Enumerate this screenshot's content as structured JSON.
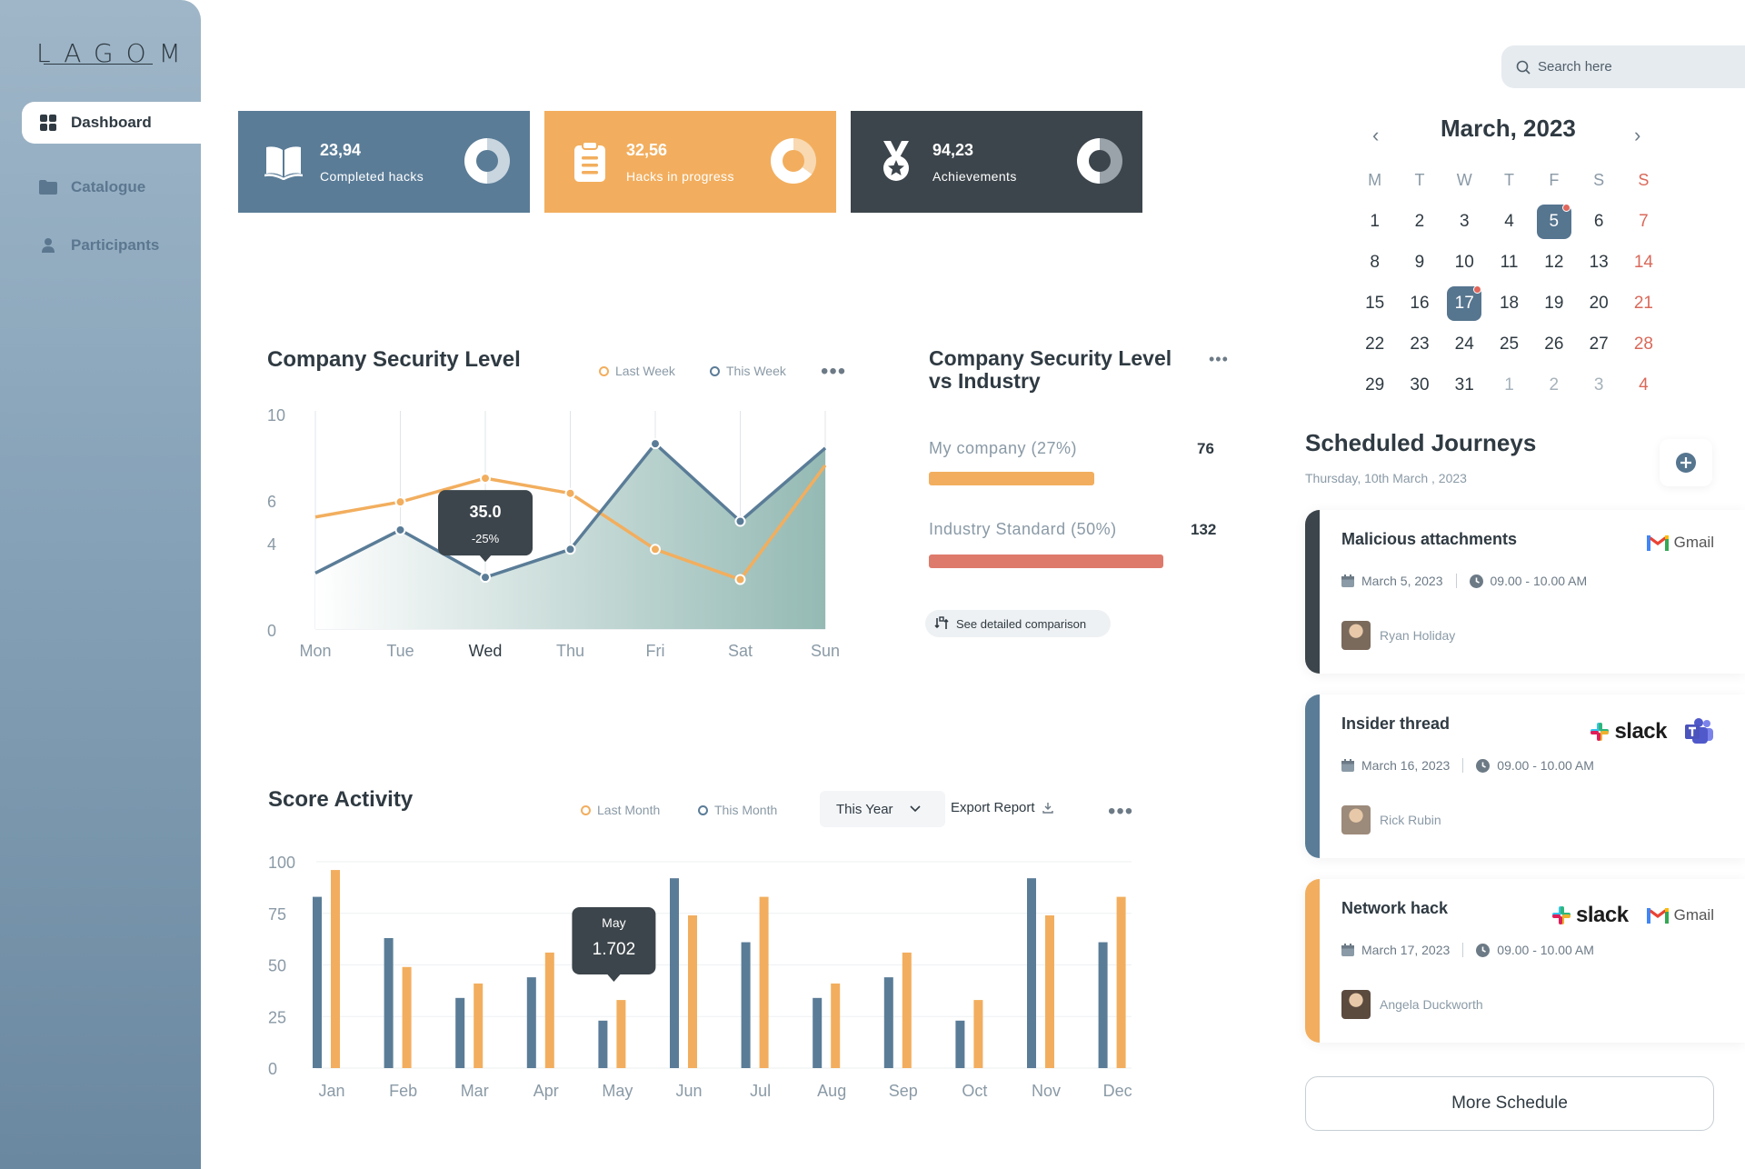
{
  "sidebar": {
    "logo": "LAGOM",
    "items": [
      {
        "label": "Dashboard"
      },
      {
        "label": "Catalogue"
      },
      {
        "label": "Participants"
      }
    ]
  },
  "cards": [
    {
      "value": "23,94",
      "label": "Completed hacks",
      "color": "#5a7c97",
      "icon": "book-icon"
    },
    {
      "value": "32,56",
      "label": "Hacks in progress",
      "color": "#f2ae5e",
      "icon": "clipboard-icon"
    },
    {
      "value": "94,23",
      "label": "Achievements",
      "color": "#3c454b",
      "icon": "medal-icon"
    }
  ],
  "security": {
    "title": "Company Security Level",
    "legend": [
      "Last Week",
      "This Week"
    ],
    "tooltip": {
      "value": "35.0",
      "delta": "-25%"
    }
  },
  "comparison": {
    "title_line1": "Company Security Level",
    "title_line2": "vs Industry",
    "rows": [
      {
        "label": "My company (27%)",
        "value": "76",
        "color": "#f2ae5e"
      },
      {
        "label": "Industry Standard (50%)",
        "value": "132",
        "color": "#de7a6b"
      }
    ],
    "button": "See detailed comparison"
  },
  "score": {
    "title": "Score Activity",
    "legend": [
      "Last Month",
      "This Month"
    ],
    "period": "This Year",
    "export": "Export Report",
    "tooltip": {
      "month": "May",
      "value": "1.702"
    }
  },
  "search": {
    "placeholder": "Search here"
  },
  "calendar": {
    "title": "March, 2023",
    "weekdays": [
      "M",
      "T",
      "W",
      "T",
      "F",
      "S",
      "S"
    ],
    "days": [
      "1",
      "2",
      "3",
      "4",
      "5",
      "6",
      "7",
      "8",
      "9",
      "10",
      "11",
      "12",
      "13",
      "14",
      "15",
      "16",
      "17",
      "18",
      "19",
      "20",
      "21",
      "22",
      "23",
      "24",
      "25",
      "26",
      "27",
      "28",
      "29",
      "30",
      "31",
      "1",
      "2",
      "3",
      "4"
    ],
    "selected": [
      "5",
      "17"
    ]
  },
  "journeys": {
    "title": "Scheduled Journeys",
    "date": "Thursday, 10th March , 2023",
    "items": [
      {
        "name": "Malicious attachments",
        "date": "March 5, 2023",
        "time": "09.00 - 10.00 AM",
        "person": "Ryan Holiday",
        "stripe": "#3c454b",
        "apps": [
          "Gmail"
        ]
      },
      {
        "name": "Insider thread",
        "date": "March 16, 2023",
        "time": "09.00 - 10.00 AM",
        "person": "Rick Rubin",
        "stripe": "#5a7c97",
        "apps": [
          "slack",
          "Teams"
        ]
      },
      {
        "name": "Network hack",
        "date": "March 17, 2023",
        "time": "09.00 - 10.00 AM",
        "person": "Angela Duckworth",
        "stripe": "#f2ae5e",
        "apps": [
          "slack",
          "Gmail"
        ]
      }
    ],
    "more": "More Schedule"
  },
  "chart_data": [
    {
      "type": "line",
      "title": "Company Security Level",
      "categories": [
        "Mon",
        "Tue",
        "Wed",
        "Thu",
        "Fri",
        "Sat",
        "Sun"
      ],
      "yticks": [
        "0",
        "4",
        "6",
        "10"
      ],
      "series": [
        {
          "name": "Last Week",
          "color": "#f2ae5e",
          "values": [
            5.2,
            5.9,
            7.0,
            6.3,
            3.7,
            2.3,
            7.6
          ]
        },
        {
          "name": "This Week",
          "color": "#5a7c97",
          "values": [
            2.6,
            4.6,
            2.4,
            3.7,
            8.6,
            5.0,
            8.4
          ]
        }
      ],
      "ylim": [
        0,
        10
      ],
      "highlight": "Wed"
    },
    {
      "type": "bar",
      "title": "Score Activity",
      "categories": [
        "Jan",
        "Feb",
        "Mar",
        "Apr",
        "May",
        "Jun",
        "Jul",
        "Aug",
        "Sep",
        "Oct",
        "Nov",
        "Dec"
      ],
      "yticks": [
        "0",
        "25",
        "50",
        "75",
        "100"
      ],
      "series": [
        {
          "name": "This Month",
          "color": "#5a7c97",
          "values": [
            83,
            63,
            34,
            44,
            23,
            92,
            61,
            34,
            44,
            23,
            92,
            61
          ]
        },
        {
          "name": "Last Month",
          "color": "#f2ae5e",
          "values": [
            96,
            49,
            41,
            56,
            33,
            74,
            83,
            41,
            56,
            33,
            74,
            83
          ]
        }
      ],
      "ylim": [
        0,
        100
      ]
    }
  ]
}
